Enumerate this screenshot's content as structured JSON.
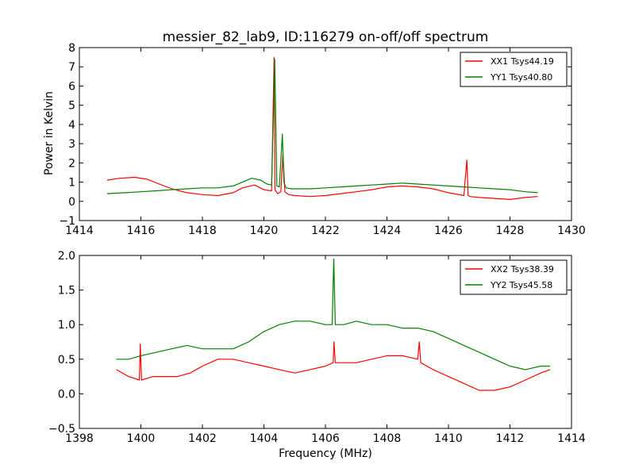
{
  "title": "messier_82_lab9, ID:116279 on-off/off spectrum",
  "chart_data": [
    {
      "type": "line",
      "ylabel": "Power in Kelvin",
      "xlabel": "",
      "xlim": [
        1414,
        1430
      ],
      "ylim": [
        -1,
        8
      ],
      "xticks": [
        "1414",
        "1416",
        "1418",
        "1420",
        "1422",
        "1424",
        "1426",
        "1428",
        "1430"
      ],
      "yticks": [
        "−1",
        "0",
        "1",
        "2",
        "3",
        "4",
        "5",
        "6",
        "7",
        "8"
      ],
      "legend": "top-right",
      "series": [
        {
          "name": "XX1 Tsys44.19",
          "color": "#ff0000",
          "x": [
            1414.9,
            1415.3,
            1415.8,
            1416.2,
            1416.6,
            1417.0,
            1417.5,
            1418.0,
            1418.5,
            1419.0,
            1419.3,
            1419.7,
            1420.0,
            1420.25,
            1420.33,
            1420.36,
            1420.45,
            1420.55,
            1420.62,
            1420.68,
            1420.8,
            1421.0,
            1421.5,
            1422.0,
            1422.5,
            1423.0,
            1423.5,
            1424.0,
            1424.5,
            1425.0,
            1425.5,
            1426.0,
            1426.5,
            1426.6,
            1426.64,
            1426.7,
            1427.0,
            1427.5,
            1428.0,
            1428.5,
            1428.9
          ],
          "y": [
            1.1,
            1.2,
            1.25,
            1.15,
            0.9,
            0.65,
            0.45,
            0.35,
            0.3,
            0.45,
            0.7,
            0.85,
            0.6,
            0.55,
            7.5,
            0.6,
            0.4,
            0.5,
            2.5,
            0.5,
            0.35,
            0.3,
            0.25,
            0.3,
            0.4,
            0.5,
            0.6,
            0.75,
            0.8,
            0.75,
            0.65,
            0.45,
            0.3,
            2.15,
            0.3,
            0.25,
            0.2,
            0.15,
            0.1,
            0.2,
            0.25
          ]
        },
        {
          "name": "YY1 Tsys40.80",
          "color": "#008000",
          "x": [
            1414.9,
            1415.5,
            1416.0,
            1416.5,
            1417.0,
            1417.5,
            1418.0,
            1418.5,
            1419.0,
            1419.3,
            1419.6,
            1419.9,
            1420.1,
            1420.25,
            1420.35,
            1420.42,
            1420.5,
            1420.6,
            1420.65,
            1420.72,
            1420.9,
            1421.5,
            1422.0,
            1422.5,
            1423.0,
            1423.5,
            1424.0,
            1424.5,
            1425.0,
            1425.5,
            1426.0,
            1426.5,
            1427.0,
            1427.5,
            1428.0,
            1428.5,
            1428.9
          ],
          "y": [
            0.4,
            0.45,
            0.5,
            0.55,
            0.6,
            0.65,
            0.7,
            0.7,
            0.8,
            1.0,
            1.2,
            1.1,
            0.9,
            0.85,
            7.4,
            0.8,
            0.75,
            3.5,
            1.0,
            0.7,
            0.65,
            0.65,
            0.7,
            0.75,
            0.8,
            0.85,
            0.9,
            0.95,
            0.9,
            0.85,
            0.8,
            0.75,
            0.7,
            0.65,
            0.6,
            0.5,
            0.45
          ]
        }
      ]
    },
    {
      "type": "line",
      "ylabel": "",
      "xlabel": "Frequency (MHz)",
      "xlim": [
        1398,
        1414
      ],
      "ylim": [
        -0.5,
        2.0
      ],
      "xticks": [
        "1398",
        "1400",
        "1402",
        "1404",
        "1406",
        "1408",
        "1410",
        "1412",
        "1414"
      ],
      "yticks": [
        "−0.5",
        "0.0",
        "0.5",
        "1.0",
        "1.5",
        "2.0"
      ],
      "legend": "top-right",
      "series": [
        {
          "name": "XX2 Tsys38.39",
          "color": "#ff0000",
          "x": [
            1399.2,
            1399.6,
            1399.95,
            1399.98,
            1400.02,
            1400.4,
            1400.8,
            1401.2,
            1401.6,
            1402.0,
            1402.5,
            1403.0,
            1403.5,
            1404.0,
            1404.5,
            1405.0,
            1405.5,
            1406.0,
            1406.25,
            1406.28,
            1406.32,
            1406.6,
            1407.0,
            1407.5,
            1408.0,
            1408.5,
            1409.0,
            1409.05,
            1409.1,
            1409.5,
            1410.0,
            1410.5,
            1411.0,
            1411.5,
            1412.0,
            1412.5,
            1413.0,
            1413.3
          ],
          "y": [
            0.35,
            0.25,
            0.2,
            0.72,
            0.2,
            0.25,
            0.25,
            0.25,
            0.3,
            0.4,
            0.5,
            0.5,
            0.45,
            0.4,
            0.35,
            0.3,
            0.35,
            0.4,
            0.45,
            0.75,
            0.45,
            0.45,
            0.45,
            0.5,
            0.55,
            0.55,
            0.5,
            0.75,
            0.45,
            0.35,
            0.25,
            0.15,
            0.05,
            0.05,
            0.1,
            0.2,
            0.3,
            0.35
          ]
        },
        {
          "name": "YY2 Tsys45.58",
          "color": "#008000",
          "x": [
            1399.2,
            1399.6,
            1400.0,
            1400.5,
            1401.0,
            1401.5,
            1402.0,
            1402.5,
            1403.0,
            1403.5,
            1404.0,
            1404.5,
            1405.0,
            1405.5,
            1406.0,
            1406.22,
            1406.27,
            1406.32,
            1406.6,
            1407.0,
            1407.5,
            1408.0,
            1408.5,
            1409.0,
            1409.5,
            1410.0,
            1410.5,
            1411.0,
            1411.5,
            1412.0,
            1412.5,
            1413.0,
            1413.3
          ],
          "y": [
            0.5,
            0.5,
            0.55,
            0.6,
            0.65,
            0.7,
            0.65,
            0.65,
            0.65,
            0.75,
            0.9,
            1.0,
            1.05,
            1.05,
            1.0,
            1.0,
            1.95,
            1.0,
            1.0,
            1.05,
            1.0,
            1.0,
            0.95,
            0.95,
            0.9,
            0.8,
            0.7,
            0.6,
            0.5,
            0.4,
            0.35,
            0.4,
            0.4
          ]
        }
      ]
    }
  ]
}
